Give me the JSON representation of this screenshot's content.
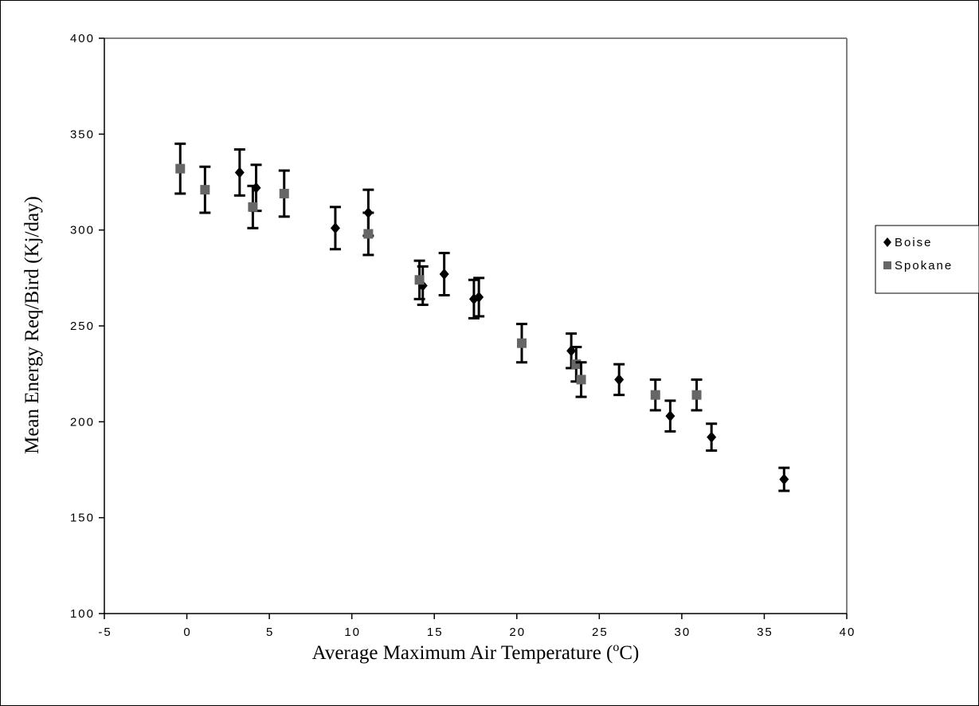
{
  "chart_data": {
    "type": "scatter",
    "xlabel": "Average Maximum Air Temperature (oC)",
    "xlabel_main": "Average Maximum Air Temperature (",
    "xlabel_sup": "o",
    "xlabel_end": "C)",
    "ylabel": "Mean Energy Req/Bird (Kj/day)",
    "xlim": [
      -5,
      40
    ],
    "ylim": [
      100,
      400
    ],
    "xticks": [
      -5,
      0,
      5,
      10,
      15,
      20,
      25,
      30,
      35,
      40
    ],
    "yticks": [
      100,
      150,
      200,
      250,
      300,
      350,
      400
    ],
    "grid": false,
    "legend_position": "right",
    "series": [
      {
        "name": "Boise",
        "marker": "diamond",
        "color": "#000000",
        "points": [
          {
            "x": 3.2,
            "y": 330,
            "err": 12
          },
          {
            "x": 4.2,
            "y": 322,
            "err": 12
          },
          {
            "x": 9.0,
            "y": 301,
            "err": 11
          },
          {
            "x": 11.0,
            "y": 309,
            "err": 12
          },
          {
            "x": 14.3,
            "y": 271,
            "err": 10
          },
          {
            "x": 15.6,
            "y": 277,
            "err": 11
          },
          {
            "x": 17.4,
            "y": 264,
            "err": 10
          },
          {
            "x": 17.7,
            "y": 265,
            "err": 10
          },
          {
            "x": 23.3,
            "y": 237,
            "err": 9
          },
          {
            "x": 26.2,
            "y": 222,
            "err": 8
          },
          {
            "x": 29.3,
            "y": 203,
            "err": 8
          },
          {
            "x": 31.8,
            "y": 192,
            "err": 7
          },
          {
            "x": 36.2,
            "y": 170,
            "err": 6
          }
        ]
      },
      {
        "name": "Spokane",
        "marker": "square",
        "color": "#666666",
        "points": [
          {
            "x": -0.4,
            "y": 332,
            "err": 13
          },
          {
            "x": 1.1,
            "y": 321,
            "err": 12
          },
          {
            "x": 4.0,
            "y": 312,
            "err": 11
          },
          {
            "x": 5.9,
            "y": 319,
            "err": 12
          },
          {
            "x": 11.0,
            "y": 298,
            "err": 11
          },
          {
            "x": 14.1,
            "y": 274,
            "err": 10
          },
          {
            "x": 20.3,
            "y": 241,
            "err": 10
          },
          {
            "x": 23.6,
            "y": 230,
            "err": 9
          },
          {
            "x": 23.9,
            "y": 222,
            "err": 9
          },
          {
            "x": 28.4,
            "y": 214,
            "err": 8
          },
          {
            "x": 30.9,
            "y": 214,
            "err": 8
          }
        ]
      }
    ]
  }
}
